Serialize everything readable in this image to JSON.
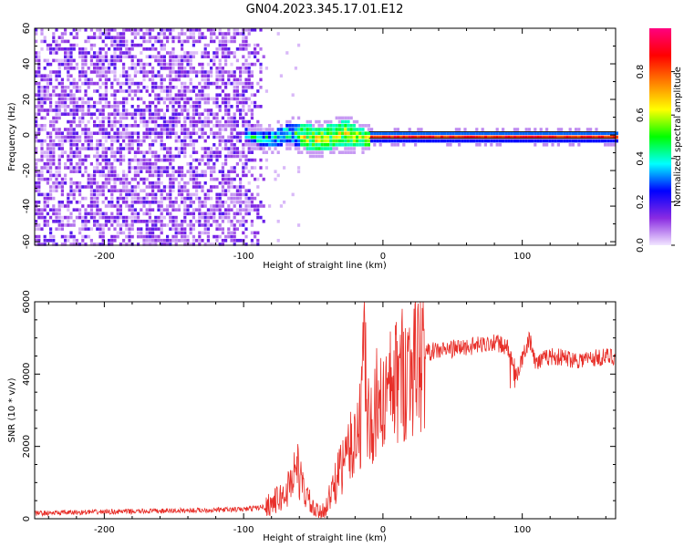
{
  "title": "GN04.2023.345.17.01.E12",
  "colors": {
    "snr_line": "#e8302a",
    "spectrogram_noise": "#8a2be2",
    "spectrogram_light": "#d9c2f5",
    "frame": "#000000"
  },
  "chart_data": [
    {
      "type": "heatmap",
      "name": "spectrogram",
      "title": "GN04.2023.345.17.01.E12",
      "xlabel": "Height of straight line (km)",
      "ylabel": "Frequency (Hz)",
      "xlim": [
        -250,
        167
      ],
      "ylim": [
        -62,
        60
      ],
      "x_ticks": [
        -200,
        -100,
        0,
        100
      ],
      "y_ticks": [
        60,
        40,
        20,
        0,
        -20,
        -40,
        -60
      ],
      "colorbar": {
        "label": "Normalized spectral amplitude",
        "range": [
          0.0,
          1.0
        ],
        "ticks": [
          0.0,
          0.2,
          0.4,
          0.6,
          0.8
        ],
        "colormap": [
          "#f2e6ff",
          "#8a2be2",
          "#0000ff",
          "#00ffff",
          "#00ff00",
          "#ffff00",
          "#ff8000",
          "#ff0000",
          "#ff0080"
        ]
      },
      "features": {
        "noise_region_x": [
          -250,
          -85
        ],
        "signal_band_center_hz": 0,
        "signal_onset_x": -100
      }
    },
    {
      "type": "line",
      "name": "snr",
      "xlabel": "Height of straight line (km)",
      "ylabel": "SNR (10 * v/v)",
      "xlim": [
        -250,
        167
      ],
      "ylim": [
        0,
        6000
      ],
      "x_ticks": [
        -200,
        -100,
        0,
        100
      ],
      "y_ticks": [
        0,
        2000,
        4000,
        6000
      ],
      "series": [
        {
          "x": [
            -250,
            -200,
            -150,
            -100,
            -85,
            -70,
            -62,
            -58,
            -50,
            -45,
            -40,
            -30,
            -20,
            -15,
            -13,
            -12,
            -10,
            -5,
            0,
            10,
            20,
            30,
            40,
            50,
            60,
            70,
            80,
            90,
            95,
            100,
            105,
            110,
            120,
            140,
            167
          ],
          "values": [
            150,
            190,
            220,
            260,
            330,
            650,
            1500,
            900,
            250,
            150,
            400,
            1400,
            2200,
            2800,
            6000,
            2900,
            2600,
            2800,
            3200,
            3800,
            4300,
            4600,
            4650,
            4700,
            4750,
            4800,
            4900,
            4700,
            3900,
            4400,
            5000,
            4300,
            4500,
            4400,
            4500
          ]
        }
      ]
    }
  ]
}
